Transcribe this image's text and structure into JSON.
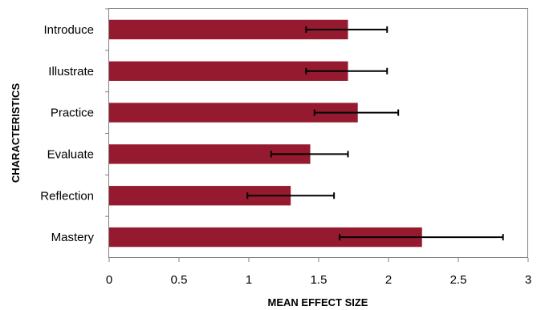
{
  "chart_data": {
    "type": "bar",
    "orientation": "horizontal",
    "categories": [
      "Introduce",
      "Illustrate",
      "Practice",
      "Evaluate",
      "Reflection",
      "Mastery"
    ],
    "values": [
      1.71,
      1.71,
      1.78,
      1.44,
      1.3,
      2.24
    ],
    "error_low": [
      1.41,
      1.41,
      1.47,
      1.16,
      0.99,
      1.65
    ],
    "error_high": [
      1.99,
      1.99,
      2.07,
      1.71,
      1.61,
      2.82
    ],
    "xlabel": "MEAN EFFECT SIZE",
    "ylabel": "CHARACTERISTICS",
    "xlim": [
      0,
      3
    ],
    "xticks": [
      "0",
      "0.5",
      "1",
      "1.5",
      "2",
      "2.5",
      "3"
    ],
    "grid": false,
    "bar_color": "#951a2f"
  }
}
